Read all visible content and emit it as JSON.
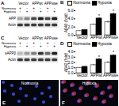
{
  "panels": [
    {
      "label": "A",
      "type": "blot",
      "conditions": [
        "Vector",
        "APPwt",
        "APPswe"
      ],
      "treatments": [
        {
          "name": "Normoxia",
          "marks": [
            "+",
            "-",
            "+",
            "-",
            "+",
            "-"
          ]
        },
        {
          "name": "Hypoxia",
          "marks": [
            "-",
            "+",
            "-",
            "+",
            "-",
            "+"
          ]
        }
      ],
      "bands": [
        {
          "name": "APP",
          "intensity": [
            0.3,
            0.45,
            0.75,
            0.95,
            0.75,
            0.95
          ]
        },
        {
          "name": "Actin",
          "intensity": [
            0.8,
            0.8,
            0.8,
            0.8,
            0.8,
            0.8
          ]
        }
      ]
    },
    {
      "label": "C",
      "type": "blot",
      "conditions": [
        "Vector",
        "APPwt",
        "APPswe"
      ],
      "treatments": [
        {
          "name": "Normoxia",
          "marks": [
            "+",
            "-",
            "+",
            "-",
            "+",
            "-"
          ]
        },
        {
          "name": "Hypoxia",
          "marks": [
            "-",
            "+",
            "-",
            "+",
            "-",
            "+"
          ]
        }
      ],
      "bands": [
        {
          "name": "sAPPβ",
          "intensity": [
            0.2,
            0.35,
            0.5,
            0.85,
            0.6,
            0.95
          ]
        },
        {
          "name": "Actin",
          "intensity": [
            0.8,
            0.8,
            0.8,
            0.8,
            0.8,
            0.8
          ]
        }
      ]
    },
    {
      "label": "E",
      "type": "image",
      "caption": "Normoxia",
      "stains": [
        "#3a5cff"
      ]
    },
    {
      "label": "F",
      "type": "image",
      "caption": "Hypoxia",
      "stains": [
        "#3a5cff",
        "#ff3a5a"
      ]
    }
  ],
  "chart_data": [
    {
      "type": "bar",
      "title": "B",
      "ylabel": "Aβ40 (fold)",
      "categories": [
        "Vector",
        "APPwt",
        "APPswe"
      ],
      "series": [
        {
          "name": "Normoxia",
          "color": "#ffffff",
          "values": [
            1.0,
            2.6,
            3.2
          ],
          "errors": [
            0.1,
            0.2,
            0.3
          ]
        },
        {
          "name": "Hypoxia",
          "color": "#000000",
          "values": [
            1.3,
            4.1,
            5.2
          ],
          "errors": [
            0.15,
            0.3,
            0.35
          ]
        }
      ],
      "ylim": [
        0,
        6
      ],
      "yticks": [
        0,
        2,
        4,
        6
      ],
      "legend": "top-left",
      "annotations": [
        {
          "category": "APPwt",
          "series": "Hypoxia",
          "text": "*"
        },
        {
          "category": "APPswe",
          "series": "Hypoxia",
          "text": "*"
        }
      ]
    },
    {
      "type": "bar",
      "title": "D",
      "ylabel": "Aβ42 (fold)",
      "categories": [
        "Vector",
        "APPwt",
        "APPswe"
      ],
      "series": [
        {
          "name": "Normoxia",
          "color": "#ffffff",
          "values": [
            1.0,
            1.5,
            2.0
          ],
          "errors": [
            0.1,
            0.15,
            0.2
          ]
        },
        {
          "name": "Hypoxia",
          "color": "#000000",
          "values": [
            1.2,
            2.6,
            3.3
          ],
          "errors": [
            0.1,
            0.2,
            0.25
          ]
        }
      ],
      "ylim": [
        0,
        4
      ],
      "yticks": [
        0,
        1,
        2,
        3,
        4
      ],
      "legend": "top-left",
      "annotations": [
        {
          "category": "APPwt",
          "series": "Hypoxia",
          "text": "*"
        },
        {
          "category": "APPswe",
          "series": "Hypoxia",
          "text": "*"
        }
      ]
    }
  ]
}
